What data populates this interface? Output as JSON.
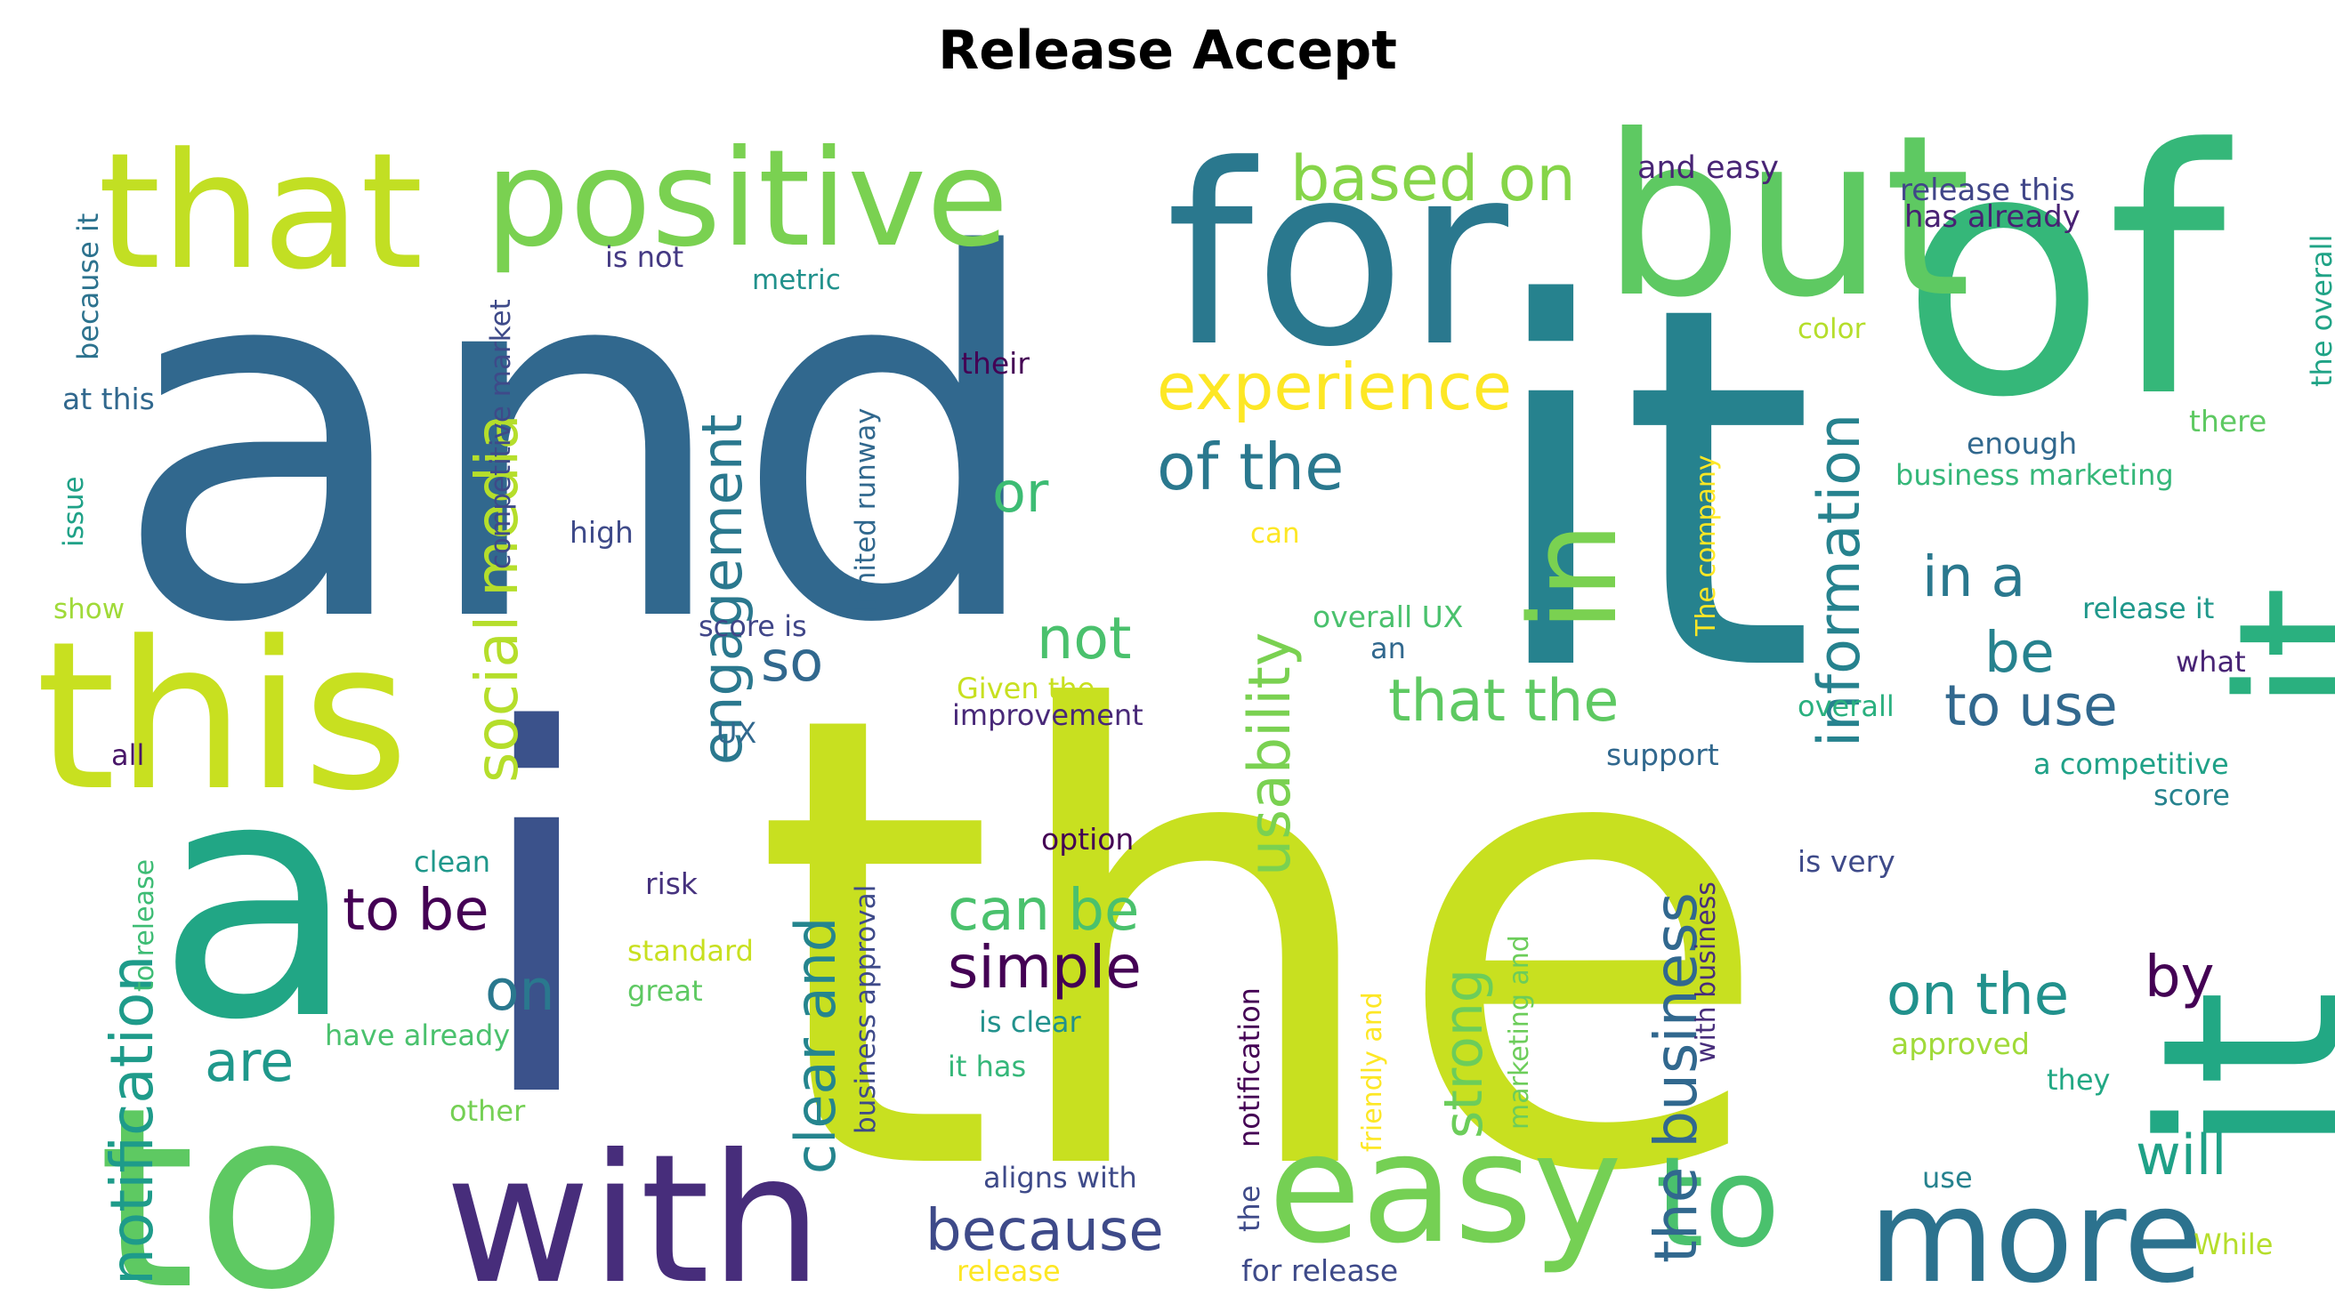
{
  "title": "Release Accept",
  "words": [
    {
      "text": "and",
      "color": "#31688e"
    },
    {
      "text": "the",
      "color": "#c8e020"
    },
    {
      "text": "it",
      "color": "#26828e"
    },
    {
      "text": "of",
      "color": "#35b779"
    },
    {
      "text": "for",
      "color": "#2a788e"
    },
    {
      "text": "but",
      "color": "#5ec962"
    },
    {
      "text": "that",
      "color": "#c2df23"
    },
    {
      "text": "positive",
      "color": "#7ad151"
    },
    {
      "text": "this",
      "color": "#c8e020"
    },
    {
      "text": "a",
      "color": "#21a685"
    },
    {
      "text": "i",
      "color": "#3b528b"
    },
    {
      "text": "to",
      "color": "#5ec962"
    },
    {
      "text": "with",
      "color": "#472d7b"
    },
    {
      "text": "it",
      "color": "#22a884"
    },
    {
      "text": "it",
      "color": "#2ab07f"
    },
    {
      "text": "in",
      "color": "#7ad151"
    },
    {
      "text": "easy",
      "color": "#75d054"
    },
    {
      "text": "more",
      "color": "#2c728e"
    },
    {
      "text": "to",
      "color": "#4ac16d"
    },
    {
      "text": "experience",
      "color": "#fde725"
    },
    {
      "text": "based on",
      "color": "#86d549"
    },
    {
      "text": "of the",
      "color": "#2a788e"
    },
    {
      "text": "social media",
      "color": "#b5de2b"
    },
    {
      "text": "engagement",
      "color": "#2a788e"
    },
    {
      "text": "information",
      "color": "#26828e"
    },
    {
      "text": "usability",
      "color": "#7ad151"
    },
    {
      "text": "notification",
      "color": "#1e9b8a"
    },
    {
      "text": "clear and",
      "color": "#25858e"
    },
    {
      "text": "the business",
      "color": "#31688e"
    },
    {
      "text": "strong",
      "color": "#6ccd5a"
    },
    {
      "text": "because",
      "color": "#3e4a89"
    },
    {
      "text": "simple",
      "color": "#440154"
    },
    {
      "text": "can be",
      "color": "#4ac16d"
    },
    {
      "text": "to be",
      "color": "#440154"
    },
    {
      "text": "on the",
      "color": "#21918c"
    },
    {
      "text": "by",
      "color": "#440154"
    },
    {
      "text": "will",
      "color": "#1fa187"
    },
    {
      "text": "that the",
      "color": "#5ec962"
    },
    {
      "text": "to use",
      "color": "#31688e"
    },
    {
      "text": "in a",
      "color": "#2a788e"
    },
    {
      "text": "be",
      "color": "#26828e"
    },
    {
      "text": "not",
      "color": "#4ac16d"
    },
    {
      "text": "so",
      "color": "#31688e"
    },
    {
      "text": "or",
      "color": "#3dbc74"
    },
    {
      "text": "on",
      "color": "#2a788e"
    },
    {
      "text": "are",
      "color": "#1f988b"
    },
    {
      "text": "and easy",
      "color": "#482475"
    },
    {
      "text": "release this",
      "color": "#404688"
    },
    {
      "text": "has already",
      "color": "#482173"
    },
    {
      "text": "the overall",
      "color": "#20a386"
    },
    {
      "text": "because it",
      "color": "#2c728e"
    },
    {
      "text": "is not",
      "color": "#443983"
    },
    {
      "text": "metric",
      "color": "#21918c"
    },
    {
      "text": "competitive market",
      "color": "#3e4a89"
    },
    {
      "text": "at this",
      "color": "#31688e"
    },
    {
      "text": "issue",
      "color": "#1fa187"
    },
    {
      "text": "their",
      "color": "#440154"
    },
    {
      "text": "limited runway",
      "color": "#31688e"
    },
    {
      "text": "high",
      "color": "#3e4a89"
    },
    {
      "text": "can",
      "color": "#fde725"
    },
    {
      "text": "The company",
      "color": "#fde725"
    },
    {
      "text": "color",
      "color": "#b5de2b"
    },
    {
      "text": "there",
      "color": "#5ec962"
    },
    {
      "text": "enough",
      "color": "#31688e"
    },
    {
      "text": "business marketing",
      "color": "#35b779"
    },
    {
      "text": "show",
      "color": "#a0da39"
    },
    {
      "text": "score is",
      "color": "#404688"
    },
    {
      "text": "overall UX",
      "color": "#4ac16d"
    },
    {
      "text": "an",
      "color": "#31688e"
    },
    {
      "text": "release it",
      "color": "#1f988b"
    },
    {
      "text": "what",
      "color": "#482475"
    },
    {
      "text": "Given the",
      "color": "#c8e020"
    },
    {
      "text": "improvement",
      "color": "#482878"
    },
    {
      "text": "overall",
      "color": "#2ab07f"
    },
    {
      "text": "UX",
      "color": "#31688e"
    },
    {
      "text": "all",
      "color": "#481668"
    },
    {
      "text": "support",
      "color": "#31688e"
    },
    {
      "text": "a competitive",
      "color": "#1fa187"
    },
    {
      "text": "score",
      "color": "#26828e"
    },
    {
      "text": "to release",
      "color": "#3dbc74"
    },
    {
      "text": "clean",
      "color": "#1f988b"
    },
    {
      "text": "option",
      "color": "#440154"
    },
    {
      "text": "is very",
      "color": "#3e4a89"
    },
    {
      "text": "risk",
      "color": "#46327e"
    },
    {
      "text": "business approval",
      "color": "#3e4a89"
    },
    {
      "text": "standard",
      "color": "#c8e020"
    },
    {
      "text": "great",
      "color": "#5ec962"
    },
    {
      "text": "notification",
      "color": "#440154"
    },
    {
      "text": "friendly and",
      "color": "#fde725"
    },
    {
      "text": "marketing and",
      "color": "#6ccd5a"
    },
    {
      "text": "with business",
      "color": "#472d7b"
    },
    {
      "text": "is clear",
      "color": "#21918c"
    },
    {
      "text": "have already",
      "color": "#4ac16d"
    },
    {
      "text": "it has",
      "color": "#35b779"
    },
    {
      "text": "approved",
      "color": "#a0da39"
    },
    {
      "text": "they",
      "color": "#22a884"
    },
    {
      "text": "other",
      "color": "#75d054"
    },
    {
      "text": "aligns with",
      "color": "#3e4a89"
    },
    {
      "text": "the",
      "color": "#3e4a89"
    },
    {
      "text": "use",
      "color": "#26828e"
    },
    {
      "text": "While",
      "color": "#b5de2b"
    },
    {
      "text": "release",
      "color": "#fde725"
    },
    {
      "text": "for release",
      "color": "#3e4a89"
    }
  ]
}
